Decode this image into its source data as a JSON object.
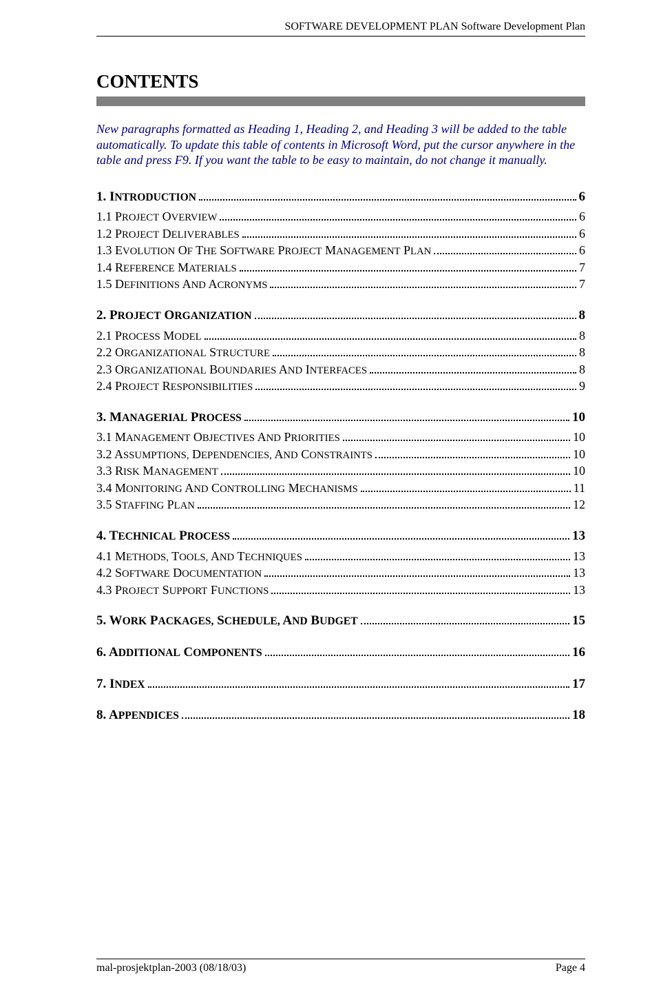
{
  "header": "SOFTWARE DEVELOPMENT PLAN Software Development Plan",
  "title": "CONTENTS",
  "intro": "New paragraphs formatted as Heading 1, Heading 2, and Heading 3 will be added to the table automatically. To update this table of contents in Microsoft Word, put the cursor anywhere in the table and press F9. If you want the table to be easy to maintain, do not change it manually.",
  "sections": [
    {
      "head": {
        "num": "1.",
        "label": "Introduction",
        "page": "6"
      },
      "items": [
        {
          "num": "1.1",
          "label": "Project Overview",
          "page": "6"
        },
        {
          "num": "1.2",
          "label": "Project Deliverables",
          "page": "6"
        },
        {
          "num": "1.3",
          "label": "Evolution of the Software Project Management Plan",
          "page": "6"
        },
        {
          "num": "1.4",
          "label": "Reference Materials",
          "page": "7"
        },
        {
          "num": "1.5",
          "label": "Definitions and Acronyms",
          "page": "7"
        }
      ]
    },
    {
      "head": {
        "num": "2.",
        "label": "Project Organization",
        "page": "8"
      },
      "items": [
        {
          "num": "2.1",
          "label": "Process Model",
          "page": "8"
        },
        {
          "num": "2.2",
          "label": "Organizational Structure",
          "page": "8"
        },
        {
          "num": "2.3",
          "label": "Organizational Boundaries and Interfaces",
          "page": "8"
        },
        {
          "num": "2.4",
          "label": "Project Responsibilities",
          "page": "9"
        }
      ]
    },
    {
      "head": {
        "num": "3.",
        "label": "Managerial Process",
        "page": "10"
      },
      "items": [
        {
          "num": "3.1",
          "label": "Management Objectives and Priorities",
          "page": "10"
        },
        {
          "num": "3.2",
          "label": "Assumptions, Dependencies, and Constraints",
          "page": "10"
        },
        {
          "num": "3.3",
          "label": "Risk Management",
          "page": "10"
        },
        {
          "num": "3.4",
          "label": "Monitoring and Controlling Mechanisms",
          "page": "11"
        },
        {
          "num": "3.5",
          "label": "Staffing Plan",
          "page": "12"
        }
      ]
    },
    {
      "head": {
        "num": "4.",
        "label": "Technical Process",
        "page": "13"
      },
      "items": [
        {
          "num": "4.1",
          "label": "Methods, Tools, and Techniques",
          "page": "13"
        },
        {
          "num": "4.2",
          "label": "Software Documentation",
          "page": "13"
        },
        {
          "num": "4.3",
          "label": "Project Support Functions",
          "page": "13"
        }
      ]
    },
    {
      "head": {
        "num": "5.",
        "label": "Work Packages, Schedule, and Budget",
        "page": "15"
      },
      "items": []
    },
    {
      "head": {
        "num": "6.",
        "label": "Additional Components",
        "page": "16"
      },
      "items": []
    },
    {
      "head": {
        "num": "7.",
        "label": "Index",
        "page": "17"
      },
      "items": []
    },
    {
      "head": {
        "num": "8.",
        "label": "Appendices",
        "page": "18"
      },
      "items": []
    }
  ],
  "footer": {
    "left": "mal-prosjektplan-2003 (08/18/03)",
    "right": "Page 4"
  },
  "colors": {
    "text": "#000000",
    "intro": "#000080",
    "bar": "#808080",
    "background": "#ffffff"
  }
}
